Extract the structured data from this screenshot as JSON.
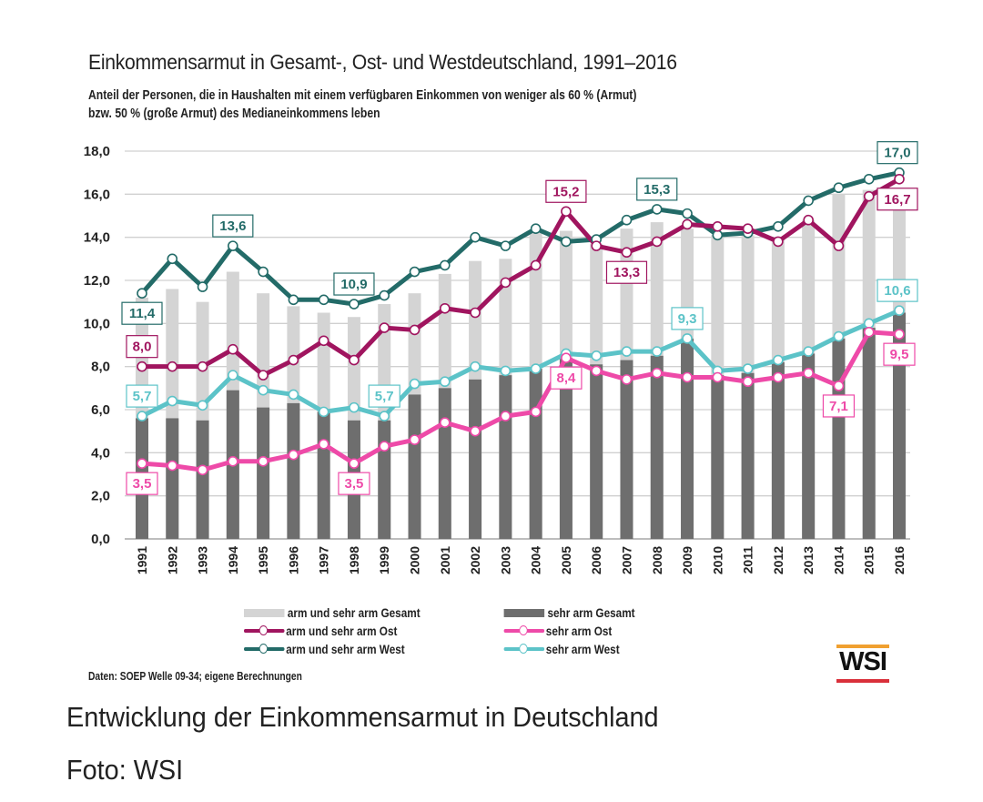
{
  "caption": "Entwicklung der Einkommensarmut in Deutschland",
  "credit": "Foto: WSI",
  "source_note": "Daten: SOEP Welle 09-34; eigene Berechnungen",
  "logo_text": "WSI",
  "colors": {
    "arm_gesamt": "#d4d4d4",
    "sehr_arm_gesamt": "#6e6e6e",
    "arm_ost": "#a0155f",
    "sehr_arm_ost": "#ee4aa8",
    "arm_west": "#236b68",
    "sehr_arm_west": "#5cc3c8",
    "logo_top": "#f0a030",
    "logo_bottom": "#d9303a"
  },
  "chart_data": {
    "type": "bar",
    "title": "Einkommensarmut in Gesamt-, Ost- und Westdeutschland, 1991–2016",
    "subtitle_line1": "Anteil der Personen, die in Haushalten mit einem verfügbaren Einkommen von weniger als 60 % (Armut)",
    "subtitle_line2": "bzw. 50 % (große Armut) des Medianeinkommens leben",
    "xlabel": "",
    "ylabel": "",
    "ylim": [
      0,
      18
    ],
    "yticks": [
      "0,0",
      "2,0",
      "4,0",
      "6,0",
      "8,0",
      "10,0",
      "12,0",
      "14,0",
      "16,0",
      "18,0"
    ],
    "grid": true,
    "legend_position": "bottom",
    "categories": [
      "1991",
      "1992",
      "1993",
      "1994",
      "1995",
      "1996",
      "1997",
      "1998",
      "1999",
      "2000",
      "2001",
      "2002",
      "2003",
      "2004",
      "2005",
      "2006",
      "2007",
      "2008",
      "2009",
      "2010",
      "2011",
      "2012",
      "2013",
      "2014",
      "2015",
      "2016"
    ],
    "bar_series": [
      {
        "key": "arm_gesamt",
        "name": "arm und sehr arm Gesamt",
        "values": [
          11.2,
          11.6,
          11.0,
          12.4,
          11.4,
          10.8,
          10.5,
          10.3,
          10.9,
          11.4,
          12.3,
          12.9,
          13.0,
          14.2,
          14.3,
          13.7,
          14.4,
          14.7,
          14.4,
          14.1,
          14.1,
          14.0,
          14.8,
          16.0,
          16.2,
          15.8
        ]
      },
      {
        "key": "sehr_arm_gesamt",
        "name": "sehr arm Gesamt",
        "values": [
          5.6,
          5.6,
          5.5,
          6.9,
          6.1,
          6.3,
          5.9,
          5.5,
          5.5,
          6.7,
          7.0,
          7.4,
          7.6,
          7.9,
          8.4,
          8.1,
          8.3,
          8.5,
          9.3,
          7.6,
          7.7,
          8.2,
          8.6,
          9.3,
          9.8,
          10.5
        ]
      }
    ],
    "line_series": [
      {
        "key": "arm_west",
        "name": "arm und sehr arm West",
        "values": [
          11.4,
          13.0,
          11.7,
          13.6,
          12.4,
          11.1,
          11.1,
          10.9,
          11.3,
          12.4,
          12.7,
          14.0,
          13.6,
          14.4,
          13.8,
          13.9,
          14.8,
          15.3,
          15.1,
          14.1,
          14.2,
          14.5,
          15.7,
          16.3,
          16.7,
          17.0
        ]
      },
      {
        "key": "arm_ost",
        "name": "arm und sehr arm Ost",
        "values": [
          8.0,
          8.0,
          8.0,
          8.8,
          7.6,
          8.3,
          9.2,
          8.3,
          9.8,
          9.7,
          10.7,
          10.5,
          11.9,
          12.7,
          15.2,
          13.6,
          13.3,
          13.8,
          14.6,
          14.5,
          14.4,
          13.8,
          14.8,
          13.6,
          15.9,
          16.7
        ]
      },
      {
        "key": "sehr_arm_west",
        "name": "sehr arm West",
        "values": [
          5.7,
          6.4,
          6.2,
          7.6,
          6.9,
          6.7,
          5.9,
          6.1,
          5.7,
          7.2,
          7.3,
          8.0,
          7.8,
          7.9,
          8.6,
          8.5,
          8.7,
          8.7,
          9.3,
          7.8,
          7.9,
          8.3,
          8.7,
          9.4,
          10.0,
          10.6
        ]
      },
      {
        "key": "sehr_arm_ost",
        "name": "sehr arm Ost",
        "values": [
          3.5,
          3.4,
          3.2,
          3.6,
          3.6,
          3.9,
          4.4,
          3.5,
          4.3,
          4.6,
          5.4,
          5.0,
          5.7,
          5.9,
          8.4,
          7.8,
          7.4,
          7.7,
          7.5,
          7.5,
          7.3,
          7.5,
          7.7,
          7.1,
          9.6,
          9.5
        ]
      }
    ],
    "annotations": [
      {
        "series": "arm_west",
        "year": "1991",
        "text": "11,4",
        "place": "below"
      },
      {
        "series": "arm_west",
        "year": "1994",
        "text": "13,6",
        "place": "above"
      },
      {
        "series": "arm_west",
        "year": "1998",
        "text": "10,9",
        "place": "above"
      },
      {
        "series": "arm_west",
        "year": "2008",
        "text": "15,3",
        "place": "above"
      },
      {
        "series": "arm_west",
        "year": "2016",
        "text": "17,0",
        "place": "above"
      },
      {
        "series": "arm_ost",
        "year": "1991",
        "text": "8,0",
        "place": "above"
      },
      {
        "series": "arm_ost",
        "year": "2005",
        "text": "15,2",
        "place": "above"
      },
      {
        "series": "arm_ost",
        "year": "2007",
        "text": "13,3",
        "place": "below"
      },
      {
        "series": "arm_ost",
        "year": "2016",
        "text": "16,7",
        "place": "below"
      },
      {
        "series": "sehr_arm_west",
        "year": "1991",
        "text": "5,7",
        "place": "above"
      },
      {
        "series": "sehr_arm_west",
        "year": "1999",
        "text": "5,7",
        "place": "above"
      },
      {
        "series": "sehr_arm_west",
        "year": "2009",
        "text": "9,3",
        "place": "above"
      },
      {
        "series": "sehr_arm_west",
        "year": "2016",
        "text": "10,6",
        "place": "above"
      },
      {
        "series": "sehr_arm_ost",
        "year": "1991",
        "text": "3,5",
        "place": "below"
      },
      {
        "series": "sehr_arm_ost",
        "year": "1998",
        "text": "3,5",
        "place": "below"
      },
      {
        "series": "sehr_arm_ost",
        "year": "2005",
        "text": "8,4",
        "place": "below"
      },
      {
        "series": "sehr_arm_ost",
        "year": "2014",
        "text": "7,1",
        "place": "below"
      },
      {
        "series": "sehr_arm_ost",
        "year": "2016",
        "text": "9,5",
        "place": "below"
      }
    ]
  },
  "legend": [
    {
      "key": "arm_gesamt",
      "label": "arm und sehr arm Gesamt",
      "kind": "bar"
    },
    {
      "key": "sehr_arm_gesamt",
      "label": "sehr arm Gesamt",
      "kind": "bar"
    },
    {
      "key": "arm_ost",
      "label": "arm und sehr arm Ost",
      "kind": "line"
    },
    {
      "key": "sehr_arm_ost",
      "label": "sehr arm Ost",
      "kind": "line"
    },
    {
      "key": "arm_west",
      "label": "arm und sehr arm West",
      "kind": "line"
    },
    {
      "key": "sehr_arm_west",
      "label": "sehr arm West",
      "kind": "line"
    }
  ]
}
